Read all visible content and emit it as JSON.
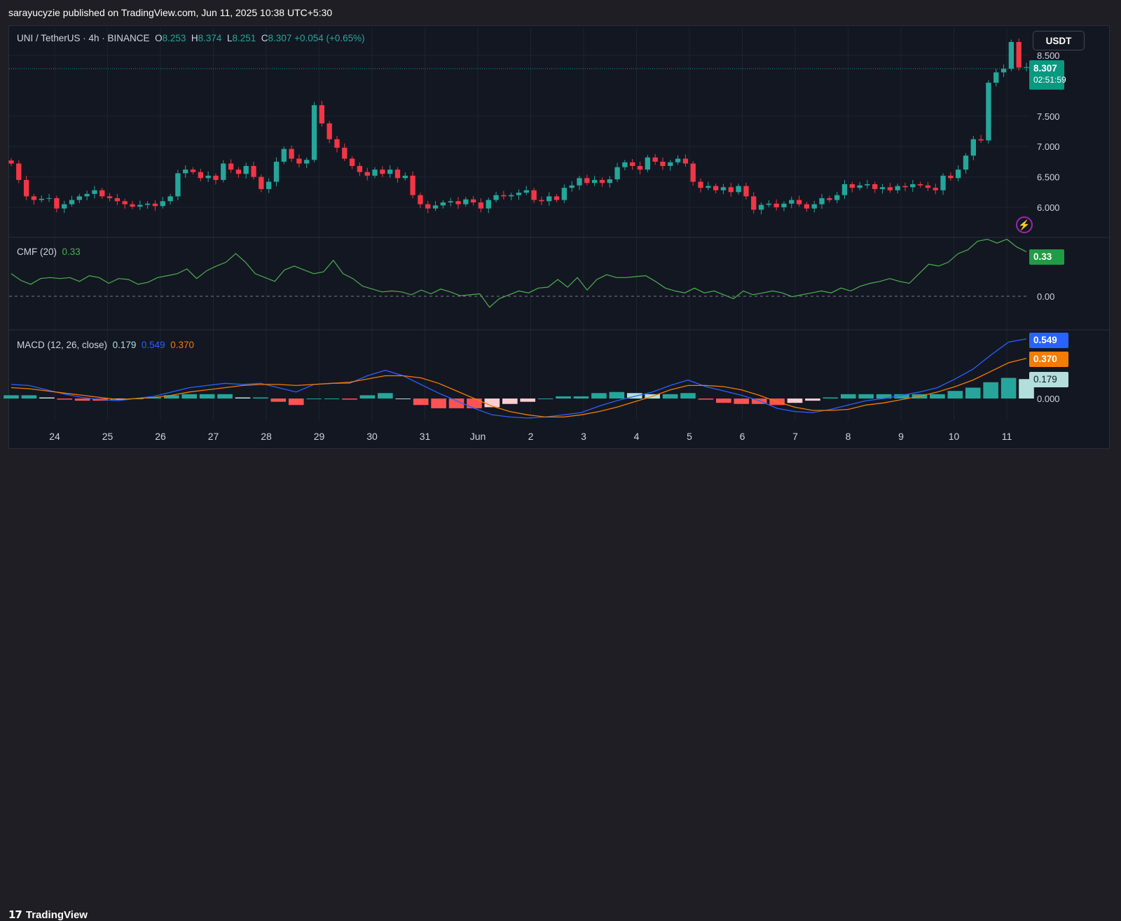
{
  "header": {
    "text": "sarayucyzie published on TradingView.com, Jun 11, 2025 10:38 UTC+5:30"
  },
  "legend": {
    "symbol": "UNI / TetherUS · 4h · BINANCE",
    "o_label": "O",
    "o_value": "8.253",
    "h_label": "H",
    "h_value": "8.374",
    "l_label": "L",
    "l_value": "8.251",
    "c_label": "C",
    "c_value": "8.307",
    "change": "+0.054 (+0.65%)"
  },
  "currency_button": "USDT",
  "last_price": {
    "value": "8.307",
    "countdown": "02:51:59"
  },
  "cmf": {
    "label": "CMF (20)",
    "value": "0.33",
    "tag": "0.33"
  },
  "macd": {
    "label": "MACD (12, 26, close)",
    "hist": "0.179",
    "macd": "0.549",
    "signal": "0.370",
    "macd_tag": "0.549",
    "signal_tag": "0.370",
    "hist_tag": "0.179"
  },
  "footer": {
    "logo_mark": "17",
    "logo_text": "TradingView"
  },
  "colors": {
    "up": "#26a69a",
    "down": "#f23645",
    "cmf_line": "#4caf50",
    "macd_line": "#2962ff",
    "signal_line": "#f57c00",
    "background": "#131722"
  },
  "chart_data": [
    {
      "type": "candlestick",
      "title": "UNI / TetherUS · 4h · BINANCE",
      "y_axis_ticks": [
        "8.500",
        "7.500",
        "7.000",
        "6.500",
        "6.000"
      ],
      "x_axis_ticks": [
        "24",
        "25",
        "26",
        "27",
        "28",
        "29",
        "30",
        "31",
        "Jun",
        "2",
        "3",
        "4",
        "5",
        "6",
        "7",
        "8",
        "9",
        "10",
        "11"
      ],
      "ylim": [
        5.55,
        8.95
      ],
      "close": [
        6.72,
        6.45,
        6.18,
        6.12,
        6.14,
        6.15,
        5.98,
        6.05,
        6.12,
        6.18,
        6.22,
        6.28,
        6.18,
        6.15,
        6.1,
        6.05,
        6.01,
        6.04,
        6.06,
        6.02,
        6.1,
        6.18,
        6.56,
        6.62,
        6.58,
        6.48,
        6.52,
        6.45,
        6.72,
        6.62,
        6.55,
        6.68,
        6.5,
        6.3,
        6.42,
        6.75,
        6.96,
        6.8,
        6.72,
        6.78,
        7.68,
        7.38,
        7.12,
        6.98,
        6.8,
        6.68,
        6.58,
        6.52,
        6.62,
        6.55,
        6.62,
        6.48,
        6.52,
        6.2,
        6.05,
        5.98,
        6.03,
        6.08,
        6.1,
        6.05,
        6.13,
        6.08,
        5.98,
        6.12,
        6.2,
        6.18,
        6.2,
        6.24,
        6.28,
        6.12,
        6.1,
        6.18,
        6.12,
        6.32,
        6.36,
        6.48,
        6.4,
        6.45,
        6.4,
        6.46,
        6.66,
        6.74,
        6.68,
        6.62,
        6.82,
        6.75,
        6.68,
        6.74,
        6.8,
        6.72,
        6.42,
        6.32,
        6.35,
        6.28,
        6.33,
        6.25,
        6.35,
        6.18,
        5.96,
        6.04,
        6.06,
        6.0,
        6.06,
        6.12,
        6.05,
        5.98,
        6.05,
        6.15,
        6.12,
        6.2,
        6.38,
        6.32,
        6.36,
        6.38,
        6.3,
        6.33,
        6.28,
        6.35,
        6.33,
        6.38,
        6.36,
        6.32,
        6.28,
        6.52,
        6.48,
        6.62,
        6.85,
        7.12,
        7.1,
        8.05,
        8.22,
        8.28,
        8.72,
        8.3,
        8.307
      ]
    },
    {
      "type": "line",
      "title": "CMF (20)",
      "y_axis_ticks": [
        "0.00"
      ],
      "ylim": [
        -0.45,
        0.45
      ],
      "values": [
        0.1,
        0.03,
        -0.01,
        0.05,
        0.06,
        0.05,
        0.06,
        0.02,
        0.08,
        0.06,
        0.0,
        0.05,
        0.04,
        -0.01,
        0.01,
        0.06,
        0.08,
        0.1,
        0.15,
        0.05,
        0.13,
        0.18,
        0.22,
        0.31,
        0.22,
        0.1,
        0.06,
        0.02,
        0.14,
        0.18,
        0.14,
        0.1,
        0.12,
        0.24,
        0.1,
        0.05,
        -0.03,
        -0.06,
        -0.09,
        -0.08,
        -0.09,
        -0.12,
        -0.07,
        -0.11,
        -0.06,
        -0.09,
        -0.13,
        -0.12,
        -0.11,
        -0.25,
        -0.16,
        -0.12,
        -0.08,
        -0.1,
        -0.05,
        -0.04,
        0.04,
        -0.04,
        0.06,
        -0.07,
        0.04,
        0.09,
        0.06,
        0.06,
        0.07,
        0.08,
        0.02,
        -0.05,
        -0.08,
        -0.1,
        -0.05,
        -0.1,
        -0.08,
        -0.12,
        -0.16,
        -0.08,
        -0.12,
        -0.1,
        -0.08,
        -0.1,
        -0.14,
        -0.12,
        -0.1,
        -0.08,
        -0.1,
        -0.05,
        -0.08,
        -0.03,
        0.0,
        0.02,
        0.05,
        0.02,
        0.0,
        0.1,
        0.2,
        0.18,
        0.22,
        0.31,
        0.35,
        0.44,
        0.46,
        0.42,
        0.46,
        0.38,
        0.33
      ]
    },
    {
      "type": "bar+line",
      "title": "MACD (12, 26, close)",
      "y_axis_ticks": [
        "0.000"
      ],
      "ylim": [
        -0.2,
        0.6
      ],
      "series": [
        {
          "name": "MACD",
          "values": [
            0.13,
            0.12,
            0.08,
            0.04,
            0.01,
            -0.01,
            -0.02,
            0.0,
            0.02,
            0.06,
            0.1,
            0.12,
            0.14,
            0.13,
            0.14,
            0.1,
            0.06,
            0.13,
            0.14,
            0.14,
            0.21,
            0.26,
            0.21,
            0.13,
            0.05,
            -0.02,
            -0.09,
            -0.15,
            -0.17,
            -0.18,
            -0.17,
            -0.15,
            -0.13,
            -0.07,
            -0.02,
            0.02,
            0.06,
            0.12,
            0.17,
            0.11,
            0.07,
            0.03,
            -0.02,
            -0.09,
            -0.12,
            -0.13,
            -0.1,
            -0.06,
            -0.02,
            0.0,
            0.03,
            0.06,
            0.1,
            0.18,
            0.27,
            0.4,
            0.52,
            0.549
          ]
        },
        {
          "name": "Signal",
          "values": [
            0.1,
            0.09,
            0.07,
            0.05,
            0.03,
            0.01,
            -0.01,
            0.0,
            0.01,
            0.03,
            0.06,
            0.08,
            0.1,
            0.12,
            0.13,
            0.13,
            0.12,
            0.13,
            0.14,
            0.15,
            0.18,
            0.21,
            0.21,
            0.19,
            0.14,
            0.07,
            0.0,
            -0.07,
            -0.12,
            -0.15,
            -0.17,
            -0.17,
            -0.15,
            -0.12,
            -0.08,
            -0.03,
            0.02,
            0.08,
            0.12,
            0.12,
            0.11,
            0.08,
            0.03,
            -0.03,
            -0.08,
            -0.11,
            -0.11,
            -0.1,
            -0.06,
            -0.04,
            -0.01,
            0.02,
            0.06,
            0.11,
            0.17,
            0.25,
            0.33,
            0.37
          ]
        },
        {
          "name": "Histogram",
          "values": [
            0.03,
            0.03,
            0.01,
            -0.01,
            -0.02,
            -0.02,
            -0.01,
            0.0,
            0.01,
            0.03,
            0.04,
            0.04,
            0.04,
            0.01,
            0.01,
            -0.03,
            -0.06,
            0.0,
            0.0,
            -0.01,
            0.03,
            0.05,
            0.0,
            -0.06,
            -0.09,
            -0.09,
            -0.09,
            -0.08,
            -0.05,
            -0.03,
            0.0,
            0.02,
            0.02,
            0.05,
            0.06,
            0.05,
            0.04,
            0.04,
            0.05,
            -0.01,
            -0.04,
            -0.05,
            -0.05,
            -0.06,
            -0.04,
            -0.02,
            0.01,
            0.04,
            0.04,
            0.04,
            0.04,
            0.04,
            0.04,
            0.07,
            0.1,
            0.15,
            0.19,
            0.179
          ]
        }
      ]
    }
  ]
}
